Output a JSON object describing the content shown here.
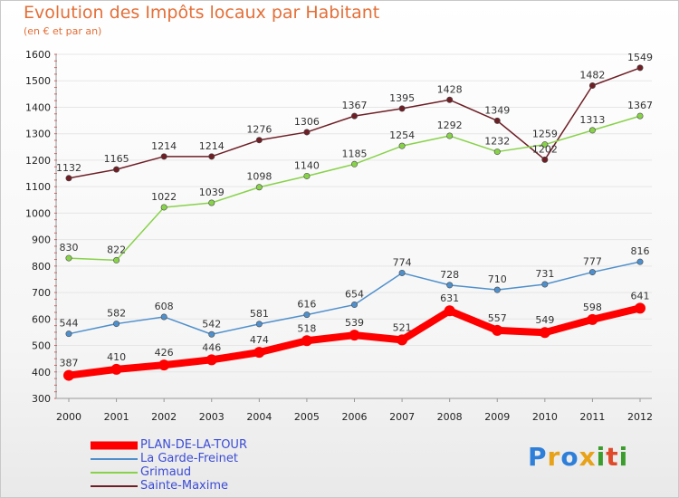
{
  "title": "Evolution des Impôts locaux par Habitant",
  "subtitle": "(en € et par an)",
  "logo_text": "Proxiti",
  "chart_data": {
    "type": "line",
    "title": "Evolution des Impôts locaux par Habitant",
    "subtitle": "(en € et par an)",
    "xlabel": "",
    "ylabel": "",
    "x": [
      2000,
      2001,
      2002,
      2003,
      2004,
      2005,
      2006,
      2007,
      2008,
      2009,
      2010,
      2011,
      2012
    ],
    "ylim": [
      300,
      1600
    ],
    "yticks": [
      300,
      400,
      500,
      600,
      700,
      800,
      900,
      1000,
      1100,
      1200,
      1300,
      1400,
      1500,
      1600
    ],
    "grid": "horizontal",
    "legend_position": "bottom-left",
    "series": [
      {
        "name": "PLAN-DE-LA-TOUR",
        "color": "#ff0000",
        "values": [
          387,
          410,
          426,
          446,
          474,
          518,
          539,
          521,
          631,
          557,
          549,
          598,
          641
        ]
      },
      {
        "name": "La Garde-Freinet",
        "color": "#4f90cc",
        "values": [
          544,
          582,
          608,
          542,
          581,
          616,
          654,
          774,
          728,
          710,
          731,
          777,
          816
        ]
      },
      {
        "name": "Grimaud",
        "color": "#88d24a",
        "values": [
          830,
          822,
          1022,
          1039,
          1098,
          1140,
          1185,
          1254,
          1292,
          1232,
          1259,
          1313,
          1367
        ]
      },
      {
        "name": "Sainte-Maxime",
        "color": "#6e1f26",
        "values": [
          1132,
          1165,
          1214,
          1214,
          1276,
          1306,
          1367,
          1395,
          1428,
          1349,
          1202,
          1482,
          1549
        ]
      }
    ]
  }
}
